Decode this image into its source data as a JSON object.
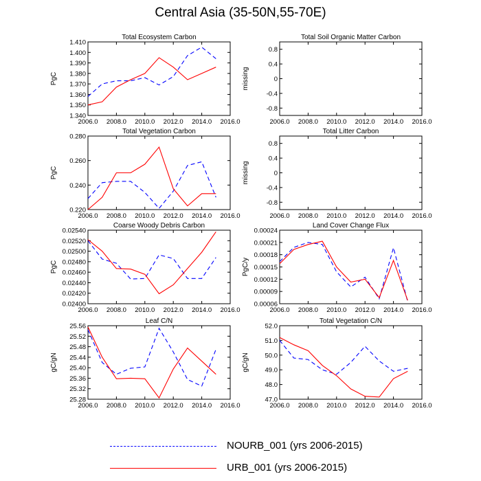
{
  "title": "Central Asia (35-50N,55-70E)",
  "colors": {
    "nourb": "#0000ff",
    "urb": "#ff0000",
    "axis": "#000000"
  },
  "legend": [
    {
      "label": "NOURB_001 (yrs 2006-2015)",
      "style": "dashed",
      "color": "#0000ff"
    },
    {
      "label": "URB_001 (yrs 2006-2015)",
      "style": "solid",
      "color": "#ff0000"
    }
  ],
  "chart_data": [
    {
      "type": "line",
      "title": "Total Ecosystem Carbon",
      "ylabel": "PgC",
      "xlim": [
        2006,
        2016
      ],
      "ylim": [
        1.34,
        1.41
      ],
      "xticks": [
        2006,
        2008,
        2010,
        2012,
        2014,
        2016
      ],
      "xtick_labels": [
        "2006.0",
        "2008.0",
        "2010.0",
        "2012.0",
        "2014.0",
        "2016.0"
      ],
      "yticks": [
        1.34,
        1.35,
        1.36,
        1.37,
        1.38,
        1.39,
        1.4,
        1.41
      ],
      "ytick_labels": [
        "1.340",
        "1.350",
        "1.360",
        "1.370",
        "1.380",
        "1.390",
        "1.400",
        "1.410"
      ],
      "x": [
        2006,
        2007,
        2008,
        2009,
        2010,
        2011,
        2012,
        2013,
        2014,
        2015
      ],
      "series": [
        {
          "name": "NOURB_001",
          "values": [
            1.358,
            1.37,
            1.373,
            1.373,
            1.376,
            1.369,
            1.377,
            1.397,
            1.405,
            1.394
          ]
        },
        {
          "name": "URB_001",
          "values": [
            1.35,
            1.353,
            1.367,
            1.374,
            1.38,
            1.395,
            1.386,
            1.374,
            1.38,
            1.386
          ]
        }
      ]
    },
    {
      "type": "line",
      "title": "Total Soil Organic Matter Carbon",
      "ylabel": "missing",
      "xlim": [
        2006,
        2016
      ],
      "ylim": [
        -1,
        1
      ],
      "xticks": [
        2006,
        2008,
        2010,
        2012,
        2014,
        2016
      ],
      "xtick_labels": [
        "2006.0",
        "2008.0",
        "2010.0",
        "2012.0",
        "2014.0",
        "2016.0"
      ],
      "yticks": [
        0.8,
        0.4,
        0,
        -0.4,
        -0.8
      ],
      "ytick_labels": [
        "0.8",
        "0.4",
        "0",
        "-0.4",
        "-0.8"
      ],
      "x": [],
      "series": []
    },
    {
      "type": "line",
      "title": "Total Vegetation Carbon",
      "ylabel": "PgC",
      "xlim": [
        2006,
        2016
      ],
      "ylim": [
        0.22,
        0.28
      ],
      "xticks": [
        2006,
        2008,
        2010,
        2012,
        2014,
        2016
      ],
      "xtick_labels": [
        "2006.0",
        "2008.0",
        "2010.0",
        "2012.0",
        "2014.0",
        "2016.0"
      ],
      "yticks": [
        0.22,
        0.24,
        0.26,
        0.28
      ],
      "ytick_labels": [
        "0.220",
        "0.240",
        "0.260",
        "0.280"
      ],
      "x": [
        2006,
        2007,
        2008,
        2009,
        2010,
        2011,
        2012,
        2013,
        2014,
        2015
      ],
      "series": [
        {
          "name": "NOURB_001",
          "values": [
            0.229,
            0.242,
            0.243,
            0.243,
            0.234,
            0.221,
            0.235,
            0.256,
            0.259,
            0.23
          ]
        },
        {
          "name": "URB_001",
          "values": [
            0.22,
            0.23,
            0.25,
            0.25,
            0.257,
            0.271,
            0.237,
            0.223,
            0.233,
            0.233
          ]
        }
      ]
    },
    {
      "type": "line",
      "title": "Total Litter Carbon",
      "ylabel": "missing",
      "xlim": [
        2006,
        2016
      ],
      "ylim": [
        -1,
        1
      ],
      "xticks": [
        2006,
        2008,
        2010,
        2012,
        2014,
        2016
      ],
      "xtick_labels": [
        "2006.0",
        "2008.0",
        "2010.0",
        "2012.0",
        "2014.0",
        "2016.0"
      ],
      "yticks": [
        0.8,
        0.4,
        0,
        -0.4,
        -0.8
      ],
      "ytick_labels": [
        "0.8",
        "0.4",
        "0",
        "-0.4",
        "-0.8"
      ],
      "x": [],
      "series": []
    },
    {
      "type": "line",
      "title": "Coarse Woody Debris Carbon",
      "ylabel": "PgC",
      "xlim": [
        2006,
        2016
      ],
      "ylim": [
        0.024,
        0.0254
      ],
      "xticks": [
        2006,
        2008,
        2010,
        2012,
        2014,
        2016
      ],
      "xtick_labels": [
        "2006.0",
        "2008.0",
        "2010.0",
        "2012.0",
        "2014.0",
        "2016.0"
      ],
      "yticks": [
        0.024,
        0.0242,
        0.0244,
        0.0246,
        0.0248,
        0.025,
        0.0252,
        0.0254
      ],
      "ytick_labels": [
        "0.02400",
        "0.02420",
        "0.02440",
        "0.02460",
        "0.02480",
        "0.02500",
        "0.02520",
        "0.02540"
      ],
      "x": [
        2006,
        2007,
        2008,
        2009,
        2010,
        2011,
        2012,
        2013,
        2014,
        2015
      ],
      "series": [
        {
          "name": "NOURB_001",
          "values": [
            0.0252,
            0.02485,
            0.02477,
            0.02447,
            0.02448,
            0.02493,
            0.02486,
            0.02448,
            0.02448,
            0.02488
          ]
        },
        {
          "name": "URB_001",
          "values": [
            0.02522,
            0.025,
            0.02467,
            0.02466,
            0.02456,
            0.02419,
            0.02436,
            0.02467,
            0.02498,
            0.02537
          ]
        }
      ]
    },
    {
      "type": "line",
      "title": "Land Cover Change Flux",
      "ylabel": "PgC/y",
      "xlim": [
        2006,
        2016
      ],
      "ylim": [
        6e-05,
        0.00024
      ],
      "xticks": [
        2006,
        2008,
        2010,
        2012,
        2014,
        2016
      ],
      "xtick_labels": [
        "2006.0",
        "2008.0",
        "2010.0",
        "2012.0",
        "2014.0",
        "2016.0"
      ],
      "yticks": [
        6e-05,
        9e-05,
        0.00012,
        0.00015,
        0.00018,
        0.00021,
        0.00024
      ],
      "ytick_labels": [
        "0.00006",
        "0.00009",
        "0.00012",
        "0.00015",
        "0.00018",
        "0.00021",
        "0.00024"
      ],
      "x": [
        2006,
        2007,
        2008,
        2009,
        2010,
        2011,
        2012,
        2013,
        2014,
        2015
      ],
      "series": [
        {
          "name": "NOURB_001",
          "values": [
            0.000163,
            0.000198,
            0.00021,
            0.000205,
            0.000138,
            0.000101,
            0.000125,
            7.2e-05,
            0.000197,
            6.5e-05
          ]
        },
        {
          "name": "URB_001",
          "values": [
            0.000158,
            0.000193,
            0.000205,
            0.000213,
            0.00015,
            0.000113,
            0.00012,
            7.5e-05,
            0.000166,
            6.8e-05
          ]
        }
      ]
    },
    {
      "type": "line",
      "title": "Leaf C/N",
      "ylabel": "gC/gN",
      "xlim": [
        2006,
        2016
      ],
      "ylim": [
        25.28,
        25.56
      ],
      "xticks": [
        2006,
        2008,
        2010,
        2012,
        2014,
        2016
      ],
      "xtick_labels": [
        "2006.0",
        "2008.0",
        "2010.0",
        "2012.0",
        "2014.0",
        "2016.0"
      ],
      "yticks": [
        25.28,
        25.32,
        25.36,
        25.4,
        25.44,
        25.48,
        25.52,
        25.56
      ],
      "ytick_labels": [
        "25.28",
        "25.32",
        "25.36",
        "25.40",
        "25.44",
        "25.48",
        "25.52",
        "25.56"
      ],
      "x": [
        2006,
        2007,
        2008,
        2009,
        2010,
        2011,
        2012,
        2013,
        2014,
        2015
      ],
      "series": [
        {
          "name": "NOURB_001",
          "values": [
            25.545,
            25.42,
            25.375,
            25.398,
            25.403,
            25.55,
            25.46,
            25.355,
            25.33,
            25.47
          ]
        },
        {
          "name": "URB_001",
          "values": [
            25.555,
            25.44,
            25.358,
            25.36,
            25.358,
            25.285,
            25.395,
            25.475,
            25.425,
            25.375
          ]
        }
      ]
    },
    {
      "type": "line",
      "title": "Total Vegetation C/N",
      "ylabel": "gC/gN",
      "xlim": [
        2006,
        2016
      ],
      "ylim": [
        47.0,
        52.0
      ],
      "xticks": [
        2006,
        2008,
        2010,
        2012,
        2014,
        2016
      ],
      "xtick_labels": [
        "2006.0",
        "2008.0",
        "2010.0",
        "2012.0",
        "2014.0",
        "2016.0"
      ],
      "yticks": [
        47,
        48,
        49,
        50,
        51,
        52
      ],
      "ytick_labels": [
        "47.0",
        "48.0",
        "49.0",
        "50.0",
        "51.0",
        "52.0"
      ],
      "x": [
        2006,
        2007,
        2008,
        2009,
        2010,
        2011,
        2012,
        2013,
        2014,
        2015
      ],
      "series": [
        {
          "name": "NOURB_001",
          "values": [
            51.0,
            49.8,
            49.7,
            49.0,
            48.7,
            49.5,
            50.6,
            49.6,
            48.9,
            49.1
          ]
        },
        {
          "name": "URB_001",
          "values": [
            51.2,
            50.7,
            50.3,
            49.3,
            48.6,
            47.7,
            47.2,
            47.15,
            48.4,
            48.9
          ]
        }
      ]
    }
  ]
}
